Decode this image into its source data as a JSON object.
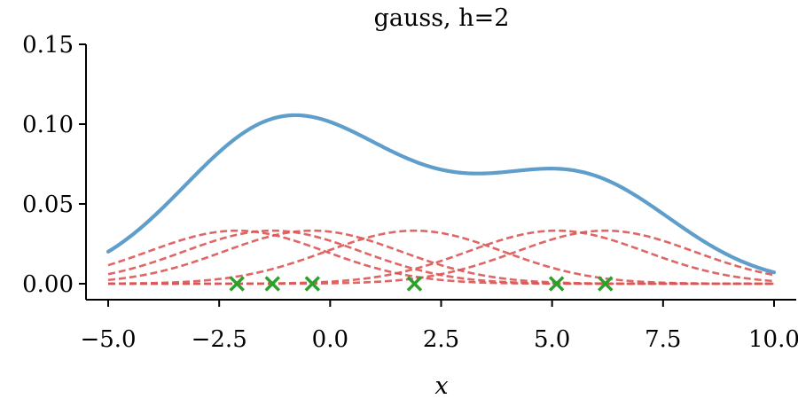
{
  "chart_data": {
    "type": "line",
    "title": "gauss, h=2",
    "xlabel": "x",
    "ylabel": "",
    "xlim": [
      -5.5,
      10.5
    ],
    "ylim": [
      -0.01,
      0.15
    ],
    "xticks": [
      -5,
      -2.5,
      0,
      2.5,
      5,
      7.5,
      10
    ],
    "xtick_labels": [
      "−5.0",
      "−2.5",
      "0.0",
      "2.5",
      "5.0",
      "7.5",
      "10.0"
    ],
    "yticks": [
      0,
      0.05,
      0.1,
      0.15
    ],
    "ytick_labels": [
      "0.00",
      "0.05",
      "0.10",
      "0.15"
    ],
    "grid": false,
    "bandwidth": 2,
    "samples": [
      -2.1,
      -1.3,
      -0.4,
      1.9,
      5.1,
      6.2
    ],
    "curve_range": [
      -5,
      10
    ],
    "colors": {
      "kde": "#5f9ecb",
      "kernels": "#dd5555",
      "samples": "#2ca02c",
      "axis": "#000000"
    }
  }
}
